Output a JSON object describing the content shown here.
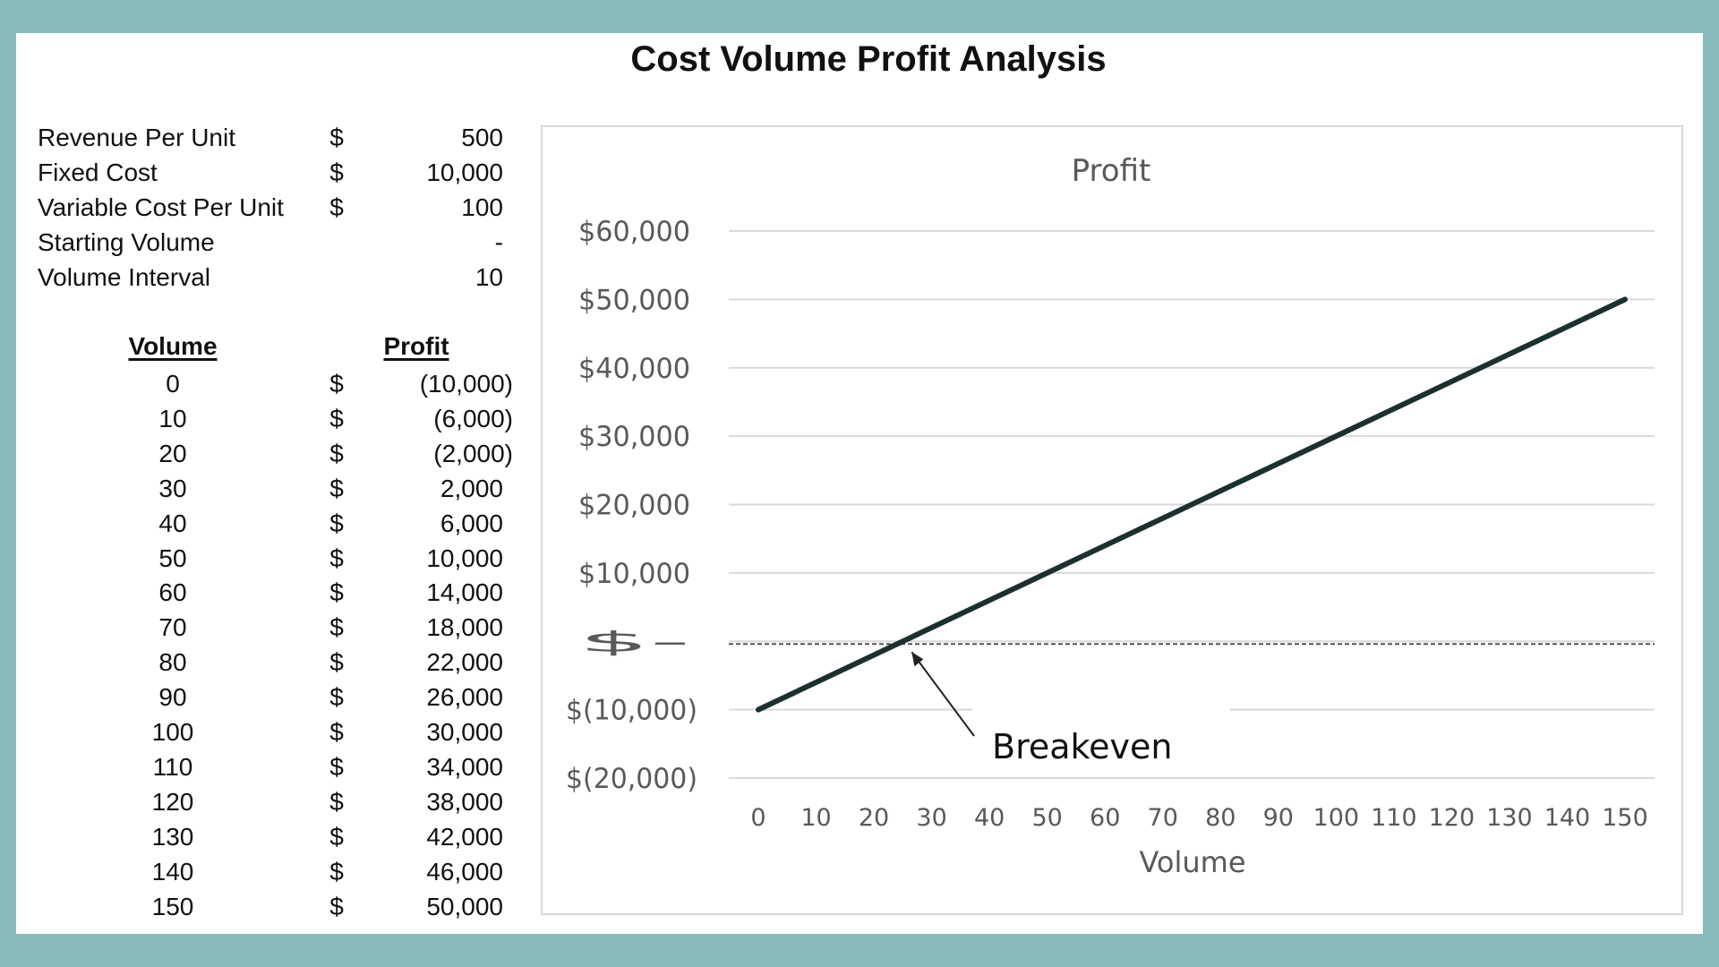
{
  "title": "Cost Volume Profit Analysis",
  "inputs": [
    {
      "label": "Revenue Per Unit",
      "currency": "$",
      "value": "500"
    },
    {
      "label": "Fixed Cost",
      "currency": "$",
      "value": "10,000"
    },
    {
      "label": "Variable Cost Per Unit",
      "currency": "$",
      "value": "100"
    },
    {
      "label": "Starting  Volume",
      "currency": "",
      "value": "-"
    },
    {
      "label": "Volume Interval",
      "currency": "",
      "value": "10"
    }
  ],
  "table": {
    "headers": {
      "volume": "Volume",
      "profit": "Profit"
    },
    "rows": [
      {
        "volume": "0",
        "currency": "$",
        "profit": "(10,000)"
      },
      {
        "volume": "10",
        "currency": "$",
        "profit": "(6,000)"
      },
      {
        "volume": "20",
        "currency": "$",
        "profit": "(2,000)"
      },
      {
        "volume": "30",
        "currency": "$",
        "profit": "2,000"
      },
      {
        "volume": "40",
        "currency": "$",
        "profit": "6,000"
      },
      {
        "volume": "50",
        "currency": "$",
        "profit": "10,000"
      },
      {
        "volume": "60",
        "currency": "$",
        "profit": "14,000"
      },
      {
        "volume": "70",
        "currency": "$",
        "profit": "18,000"
      },
      {
        "volume": "80",
        "currency": "$",
        "profit": "22,000"
      },
      {
        "volume": "90",
        "currency": "$",
        "profit": "26,000"
      },
      {
        "volume": "100",
        "currency": "$",
        "profit": "30,000"
      },
      {
        "volume": "110",
        "currency": "$",
        "profit": "34,000"
      },
      {
        "volume": "120",
        "currency": "$",
        "profit": "38,000"
      },
      {
        "volume": "130",
        "currency": "$",
        "profit": "42,000"
      },
      {
        "volume": "140",
        "currency": "$",
        "profit": "46,000"
      },
      {
        "volume": "150",
        "currency": "$",
        "profit": "50,000"
      }
    ]
  },
  "chart_data": {
    "type": "line",
    "title": "Profit",
    "xlabel": "Volume",
    "ylabel": "",
    "x": [
      0,
      10,
      20,
      30,
      40,
      50,
      60,
      70,
      80,
      90,
      100,
      110,
      120,
      130,
      140,
      150
    ],
    "series": [
      {
        "values": [
          -10000,
          -6000,
          -2000,
          2000,
          6000,
          10000,
          14000,
          18000,
          22000,
          26000,
          30000,
          34000,
          38000,
          42000,
          46000,
          50000
        ]
      }
    ],
    "ylim": [
      -20000,
      60000
    ],
    "yticks": [
      60000,
      50000,
      40000,
      30000,
      20000,
      10000,
      0,
      -10000,
      -20000
    ],
    "ytick_labels": [
      "$60,000",
      "$50,000",
      "$40,000",
      "$30,000",
      "$20,000",
      "$10,000",
      "$-",
      "$(10,000)",
      "$(20,000)"
    ],
    "xtick_labels": [
      "0",
      "10",
      "20",
      "30",
      "40",
      "50",
      "60",
      "70",
      "80",
      "90",
      "100",
      "110",
      "120",
      "130",
      "140",
      "150"
    ],
    "grid": true,
    "annotation": {
      "text": "Breakeven",
      "x": 25,
      "y": 0
    },
    "colors": {
      "line": "#1c3030",
      "grid": "#d9d9d9",
      "axis_text": "#595959",
      "background": "#8abbbc"
    }
  }
}
